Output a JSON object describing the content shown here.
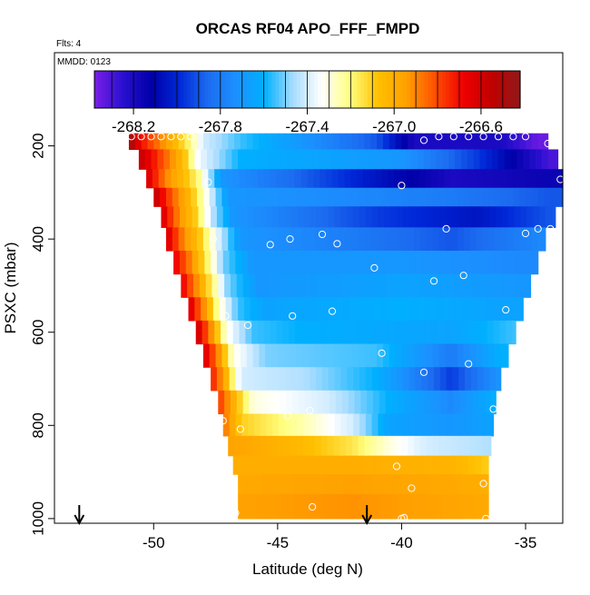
{
  "chart_data": {
    "type": "heatmap",
    "title": "ORCAS RF04 APO_FFF_FMPD",
    "subtitle_flights": "Flts: 4",
    "subtitle_date": "MMDD: 0123",
    "xlabel": "Latitude (deg N)",
    "ylabel": "PSXC (mbar)",
    "xlim": [
      -54.0,
      -33.5
    ],
    "ylim": [
      1010,
      0
    ],
    "x_ticks": [
      -50,
      -45,
      -40,
      -35
    ],
    "x_tick_labels": [
      "-50",
      "-45",
      "-40",
      "-35"
    ],
    "y_ticks": [
      200,
      400,
      600,
      800,
      1000
    ],
    "y_tick_labels": [
      "200",
      "400",
      "600",
      "800",
      "1000"
    ],
    "colorbar": {
      "range": [
        -268.38,
        -266.42
      ],
      "ticks": [
        -268.2,
        -267.8,
        -267.4,
        -267.0,
        -266.6
      ],
      "tick_labels": [
        "-268.2",
        "-267.8",
        "-267.4",
        "-267.0",
        "-266.6"
      ],
      "colors": [
        "#7a1ee6",
        "#2a10d0",
        "#0000a8",
        "#0028d8",
        "#1c6cf0",
        "#1c90ff",
        "#00b0ff",
        "#a8dcff",
        "#ffffff",
        "#ffff80",
        "#ffc000",
        "#ffa000",
        "#ff5000",
        "#f00000",
        "#c00000",
        "#901a1a"
      ]
    },
    "layers": [
      {
        "p": 185,
        "left": -51.0,
        "right": -34.1,
        "knots": [
          [
            -51.0,
            -266.45
          ],
          [
            -50.5,
            -266.7
          ],
          [
            -49.3,
            -267.0
          ],
          [
            -48.7,
            -267.15
          ],
          [
            -48.0,
            -267.4
          ],
          [
            -46.5,
            -267.55
          ],
          [
            -44.0,
            -267.7
          ],
          [
            -41.0,
            -267.9
          ],
          [
            -39.5,
            -268.2
          ],
          [
            -36.0,
            -268.2
          ],
          [
            -34.5,
            -268.35
          ]
        ]
      },
      {
        "p": 230,
        "left": -50.6,
        "right": -33.7,
        "knots": [
          [
            -50.6,
            -266.55
          ],
          [
            -49.5,
            -266.85
          ],
          [
            -48.8,
            -267.05
          ],
          [
            -48.2,
            -267.35
          ],
          [
            -46.5,
            -267.6
          ],
          [
            -40.0,
            -267.7
          ],
          [
            -37.0,
            -267.95
          ],
          [
            -34.0,
            -268.3
          ]
        ]
      },
      {
        "p": 270,
        "left": -50.3,
        "right": -33.5,
        "knots": [
          [
            -50.3,
            -266.6
          ],
          [
            -49.5,
            -266.9
          ],
          [
            -48.8,
            -267.05
          ],
          [
            -48.2,
            -267.2
          ],
          [
            -47.3,
            -267.7
          ],
          [
            -44.5,
            -267.85
          ],
          [
            -41.0,
            -268.05
          ],
          [
            -38.0,
            -268.2
          ],
          [
            -34.0,
            -268.15
          ]
        ]
      },
      {
        "p": 310,
        "left": -50.0,
        "right": -33.5,
        "knots": [
          [
            -50.0,
            -266.55
          ],
          [
            -49.2,
            -266.85
          ],
          [
            -48.5,
            -267.05
          ],
          [
            -47.8,
            -267.35
          ],
          [
            -47.0,
            -267.7
          ],
          [
            -42.0,
            -267.75
          ],
          [
            -38.0,
            -267.8
          ],
          [
            -34.0,
            -267.9
          ]
        ]
      },
      {
        "p": 350,
        "left": -49.7,
        "right": -33.8,
        "knots": [
          [
            -49.7,
            -266.6
          ],
          [
            -49.0,
            -266.9
          ],
          [
            -48.3,
            -267.1
          ],
          [
            -47.6,
            -267.45
          ],
          [
            -46.8,
            -267.7
          ],
          [
            -41.0,
            -267.95
          ],
          [
            -37.0,
            -268.05
          ],
          [
            -34.0,
            -267.9
          ]
        ]
      },
      {
        "p": 400,
        "left": -49.5,
        "right": -34.2,
        "knots": [
          [
            -49.5,
            -266.6
          ],
          [
            -48.8,
            -266.9
          ],
          [
            -48.1,
            -267.1
          ],
          [
            -47.5,
            -267.35
          ],
          [
            -46.5,
            -267.7
          ],
          [
            -42.0,
            -267.8
          ],
          [
            -38.0,
            -267.9
          ],
          [
            -34.2,
            -267.75
          ]
        ]
      },
      {
        "p": 450,
        "left": -49.2,
        "right": -34.5,
        "knots": [
          [
            -49.2,
            -266.65
          ],
          [
            -48.5,
            -266.9
          ],
          [
            -47.8,
            -267.2
          ],
          [
            -47.2,
            -267.5
          ],
          [
            -46.0,
            -267.7
          ],
          [
            -40.0,
            -267.7
          ],
          [
            -35.0,
            -267.75
          ]
        ]
      },
      {
        "p": 500,
        "left": -48.9,
        "right": -34.8,
        "knots": [
          [
            -48.9,
            -266.65
          ],
          [
            -48.3,
            -266.9
          ],
          [
            -47.6,
            -267.2
          ],
          [
            -47.0,
            -267.5
          ],
          [
            -45.8,
            -267.7
          ],
          [
            -40.0,
            -267.65
          ],
          [
            -35.0,
            -267.7
          ]
        ]
      },
      {
        "p": 550,
        "left": -48.6,
        "right": -35.1,
        "knots": [
          [
            -48.6,
            -266.6
          ],
          [
            -48.0,
            -266.9
          ],
          [
            -47.4,
            -267.25
          ],
          [
            -46.6,
            -267.55
          ],
          [
            -45.5,
            -267.65
          ],
          [
            -40.0,
            -267.6
          ],
          [
            -36.0,
            -267.65
          ]
        ]
      },
      {
        "p": 600,
        "left": -48.3,
        "right": -35.4,
        "knots": [
          [
            -48.3,
            -266.55
          ],
          [
            -47.7,
            -266.9
          ],
          [
            -47.1,
            -267.3
          ],
          [
            -46.0,
            -267.55
          ],
          [
            -44.0,
            -267.6
          ],
          [
            -38.0,
            -267.65
          ],
          [
            -35.5,
            -267.55
          ]
        ]
      },
      {
        "p": 650,
        "left": -48.0,
        "right": -35.7,
        "knots": [
          [
            -48.0,
            -266.6
          ],
          [
            -47.4,
            -266.9
          ],
          [
            -46.8,
            -267.3
          ],
          [
            -45.5,
            -267.5
          ],
          [
            -41.0,
            -267.55
          ],
          [
            -38.0,
            -267.8
          ],
          [
            -36.0,
            -267.6
          ]
        ]
      },
      {
        "p": 700,
        "left": -47.7,
        "right": -36.0,
        "knots": [
          [
            -47.7,
            -266.7
          ],
          [
            -47.1,
            -267.0
          ],
          [
            -46.5,
            -267.4
          ],
          [
            -44.0,
            -267.45
          ],
          [
            -41.0,
            -267.6
          ],
          [
            -38.0,
            -267.95
          ],
          [
            -36.0,
            -267.7
          ]
        ]
      },
      {
        "p": 750,
        "left": -47.4,
        "right": -36.2,
        "knots": [
          [
            -47.4,
            -266.75
          ],
          [
            -46.8,
            -267.0
          ],
          [
            -46.0,
            -267.3
          ],
          [
            -43.0,
            -267.4
          ],
          [
            -40.5,
            -267.6
          ],
          [
            -38.0,
            -267.75
          ],
          [
            -36.2,
            -267.6
          ]
        ]
      },
      {
        "p": 800,
        "left": -47.2,
        "right": -36.3,
        "knots": [
          [
            -47.2,
            -266.85
          ],
          [
            -46.5,
            -267.1
          ],
          [
            -44.0,
            -267.25
          ],
          [
            -42.0,
            -267.4
          ],
          [
            -40.5,
            -267.65
          ],
          [
            -38.0,
            -267.7
          ],
          [
            -36.3,
            -267.65
          ]
        ]
      },
      {
        "p": 845,
        "left": -47.0,
        "right": -36.4,
        "knots": [
          [
            -47.0,
            -266.95
          ],
          [
            -44.0,
            -267.05
          ],
          [
            -42.0,
            -267.15
          ],
          [
            -40.5,
            -267.3
          ],
          [
            -39.0,
            -267.4
          ],
          [
            -36.4,
            -267.45
          ]
        ]
      },
      {
        "p": 885,
        "left": -46.8,
        "right": -36.5,
        "knots": [
          [
            -46.8,
            -267.0
          ],
          [
            -42.0,
            -267.0
          ],
          [
            -38.0,
            -267.02
          ],
          [
            -36.5,
            -267.1
          ]
        ]
      },
      {
        "p": 925,
        "left": -46.6,
        "right": -36.5,
        "knots": [
          [
            -46.6,
            -266.98
          ],
          [
            -42.0,
            -266.95
          ],
          [
            -38.0,
            -266.98
          ],
          [
            -36.5,
            -267.0
          ]
        ]
      },
      {
        "p": 970,
        "left": -46.6,
        "right": -36.5,
        "knots": [
          [
            -46.6,
            -266.95
          ],
          [
            -42.0,
            -266.92
          ],
          [
            -38.0,
            -266.96
          ],
          [
            -36.5,
            -266.98
          ]
        ]
      }
    ],
    "observations": [
      [
        -50.9,
        180
      ],
      [
        -50.5,
        180
      ],
      [
        -50.1,
        180
      ],
      [
        -49.7,
        180
      ],
      [
        -49.3,
        180
      ],
      [
        -48.9,
        180
      ],
      [
        -48.5,
        180
      ],
      [
        -39.1,
        188
      ],
      [
        -38.5,
        180
      ],
      [
        -37.9,
        180
      ],
      [
        -37.3,
        180
      ],
      [
        -36.7,
        180
      ],
      [
        -36.1,
        180
      ],
      [
        -35.5,
        180
      ],
      [
        -35.0,
        180
      ],
      [
        -34.1,
        195
      ],
      [
        -33.6,
        272
      ],
      [
        -47.8,
        278
      ],
      [
        -40.0,
        285
      ],
      [
        -33.6,
        358
      ],
      [
        -38.2,
        378
      ],
      [
        -35.0,
        388
      ],
      [
        -34.5,
        378
      ],
      [
        -34.0,
        378
      ],
      [
        -43.2,
        390
      ],
      [
        -44.5,
        400
      ],
      [
        -47.6,
        400
      ],
      [
        -45.3,
        412
      ],
      [
        -42.6,
        410
      ],
      [
        -41.1,
        462
      ],
      [
        -37.5,
        478
      ],
      [
        -38.7,
        490
      ],
      [
        -47.1,
        565
      ],
      [
        -44.4,
        565
      ],
      [
        -42.8,
        555
      ],
      [
        -35.8,
        552
      ],
      [
        -46.2,
        585
      ],
      [
        -40.8,
        645
      ],
      [
        -39.1,
        686
      ],
      [
        -37.3,
        668
      ],
      [
        -36.3,
        765
      ],
      [
        -43.7,
        768
      ],
      [
        -44.6,
        780
      ],
      [
        -47.2,
        790
      ],
      [
        -46.5,
        808
      ],
      [
        -40.2,
        888
      ],
      [
        -36.7,
        925
      ],
      [
        -39.6,
        935
      ],
      [
        -43.6,
        975
      ],
      [
        -46.7,
        988
      ],
      [
        -39.9,
        998
      ],
      [
        -40.0,
        1000
      ],
      [
        -36.6,
        1000
      ]
    ],
    "arrows": [
      -53.0,
      -41.4
    ]
  }
}
